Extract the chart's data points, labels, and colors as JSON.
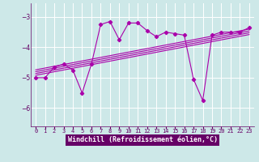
{
  "xlabel": "Windchill (Refroidissement éolien,°C)",
  "bg_color": "#cde8e8",
  "plot_bg": "#cde8e8",
  "line_color": "#aa00aa",
  "xlabel_bg": "#660066",
  "xlabel_fg": "#ffffff",
  "xlim": [
    -0.5,
    23.5
  ],
  "ylim": [
    -6.6,
    -2.55
  ],
  "yticks": [
    -6,
    -5,
    -4,
    -3
  ],
  "xticks": [
    0,
    1,
    2,
    3,
    4,
    5,
    6,
    7,
    8,
    9,
    10,
    11,
    12,
    13,
    14,
    15,
    16,
    17,
    18,
    19,
    20,
    21,
    22,
    23
  ],
  "scatter_x": [
    0,
    1,
    2,
    3,
    4,
    5,
    6,
    7,
    8,
    9,
    10,
    11,
    12,
    13,
    14,
    15,
    16,
    17,
    18,
    19,
    20,
    21,
    22,
    23
  ],
  "scatter_y": [
    -5.0,
    -5.0,
    -4.65,
    -4.55,
    -4.75,
    -5.5,
    -4.55,
    -3.25,
    -3.15,
    -3.75,
    -3.2,
    -3.2,
    -3.45,
    -3.65,
    -3.5,
    -3.55,
    -3.6,
    -5.05,
    -5.75,
    -3.6,
    -3.5,
    -3.5,
    -3.5,
    -3.35
  ],
  "reg_lines": [
    {
      "x0": 0,
      "y0": -4.92,
      "x1": 23,
      "y1": -3.58
    },
    {
      "x0": 0,
      "y0": -4.86,
      "x1": 23,
      "y1": -3.52
    },
    {
      "x0": 0,
      "y0": -4.8,
      "x1": 23,
      "y1": -3.46
    },
    {
      "x0": 0,
      "y0": -4.74,
      "x1": 23,
      "y1": -3.4
    }
  ],
  "grid_color": "#ffffff",
  "tick_fontsize": 5.5,
  "xlabel_fontsize": 6.0
}
